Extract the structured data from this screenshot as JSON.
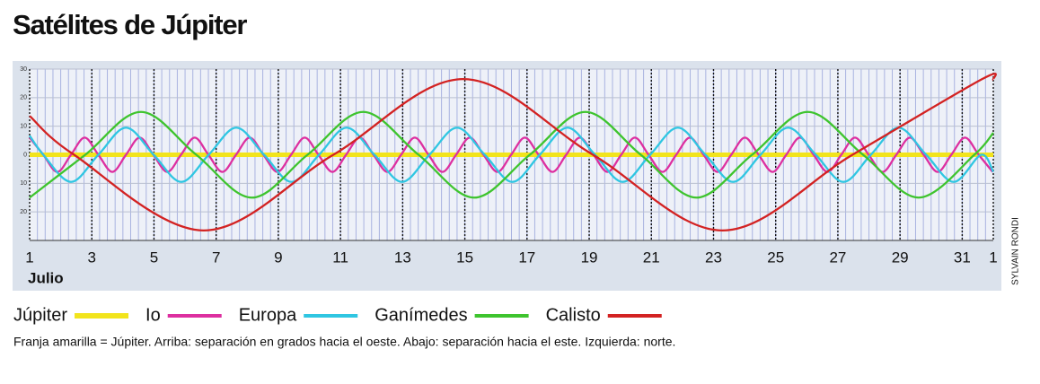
{
  "chart_data": {
    "type": "line",
    "title": "Satélites de Júpiter",
    "x_label": "Julio",
    "caption": "Franja amarilla = Júpiter. Arriba: separación en grados hacia el oeste. Abajo: separación hacia el este. Izquierda: norte.",
    "credit": "SYLVAIN RONDI",
    "xlim": [
      1,
      32
    ],
    "xticks": [
      1,
      3,
      5,
      7,
      9,
      11,
      13,
      15,
      17,
      19,
      21,
      23,
      25,
      27,
      29,
      31,
      {
        "value": 32,
        "label": "1"
      }
    ],
    "xminor": 4,
    "ylim": [
      -30,
      30
    ],
    "yticks": [
      30,
      20,
      10,
      0,
      {
        "value": -10,
        "label": "10"
      },
      {
        "value": -20,
        "label": "20"
      }
    ],
    "grid": true,
    "series": [
      {
        "name": "Júpiter",
        "color": "#f2e41c",
        "x": [
          1,
          32
        ],
        "values": [
          0,
          0
        ]
      },
      {
        "name": "Io",
        "color": "#dd2fa0",
        "x": [
          1.0,
          1.44,
          1.89,
          2.33,
          2.77,
          3.21,
          3.66,
          4.1,
          4.54,
          4.98,
          5.43,
          5.87,
          6.31,
          6.75,
          7.2,
          7.64,
          8.08,
          8.52,
          8.97,
          9.41,
          9.85,
          10.29,
          10.74,
          11.18,
          11.62,
          12.06,
          12.51,
          12.95,
          13.39,
          13.83,
          14.28,
          14.72,
          15.16,
          15.6,
          16.05,
          16.49,
          16.93,
          17.37,
          17.82,
          18.26,
          18.7,
          19.14,
          19.59,
          20.03,
          20.47,
          20.91,
          21.36,
          21.8,
          22.24,
          22.68,
          23.13,
          23.57,
          24.01,
          24.45,
          24.9,
          25.34,
          25.78,
          26.22,
          26.67,
          27.11,
          27.55,
          27.99,
          28.44,
          28.88,
          29.32,
          29.76,
          30.21,
          30.65,
          31.09,
          31.53,
          31.98
        ],
        "values": [
          6,
          0,
          -6,
          0,
          6,
          0,
          -6,
          0,
          6,
          0,
          -6,
          0,
          6,
          0,
          -6,
          0,
          6,
          0,
          -6,
          0,
          6,
          0,
          -6,
          0,
          6,
          0,
          -6,
          0,
          6,
          0,
          -6,
          0,
          6,
          0,
          -6,
          0,
          6,
          0,
          -6,
          0,
          6,
          0,
          -6,
          0,
          6,
          0,
          -6,
          0,
          6,
          0,
          -6,
          0,
          6,
          0,
          -6,
          0,
          6,
          0,
          -6,
          0,
          6,
          0,
          -6,
          0,
          6,
          0,
          -6,
          0,
          6,
          0,
          -6
        ]
      },
      {
        "name": "Europa",
        "color": "#2fc6e2",
        "x": [
          1.0,
          1.44,
          2.33,
          3.21,
          4.1,
          4.99,
          5.88,
          6.76,
          7.65,
          8.54,
          9.43,
          10.31,
          11.2,
          12.09,
          12.98,
          13.86,
          14.75,
          15.64,
          16.53,
          17.41,
          18.3,
          19.19,
          20.08,
          20.96,
          21.85,
          22.74,
          23.63,
          24.51,
          25.4,
          26.29,
          27.18,
          28.06,
          28.95,
          29.84,
          30.73,
          31.61,
          32.0
        ],
        "values": [
          6.7,
          0,
          -9.5,
          0,
          9.5,
          0,
          -9.5,
          0,
          9.5,
          0,
          -9.5,
          0,
          9.5,
          0,
          -9.5,
          0,
          9.5,
          0,
          -9.5,
          0,
          9.5,
          0,
          -9.5,
          0,
          9.5,
          0,
          -9.5,
          0,
          9.5,
          0,
          -9.5,
          0,
          9.5,
          0,
          -9.5,
          0,
          -6.0
        ]
      },
      {
        "name": "Ganímedes",
        "color": "#3ec42e",
        "x": [
          1.0,
          2.79,
          4.58,
          6.36,
          8.15,
          9.94,
          11.73,
          13.51,
          15.3,
          17.09,
          18.88,
          20.66,
          22.45,
          24.24,
          26.03,
          27.81,
          29.6,
          31.39,
          32.0
        ],
        "values": [
          -15,
          0,
          15,
          0,
          -15,
          0,
          15,
          0,
          -15,
          0,
          15,
          0,
          -15,
          0,
          15,
          0,
          -15,
          0,
          7.7
        ]
      },
      {
        "name": "Calisto",
        "color": "#d32222",
        "x": [
          1.0,
          2.43,
          6.6,
          10.77,
          14.95,
          19.12,
          23.29,
          27.47,
          31.64,
          32.0
        ],
        "values": [
          13.6,
          0,
          -26.5,
          0,
          26.5,
          0,
          -26.5,
          0,
          26.5,
          26.3
        ]
      }
    ]
  }
}
